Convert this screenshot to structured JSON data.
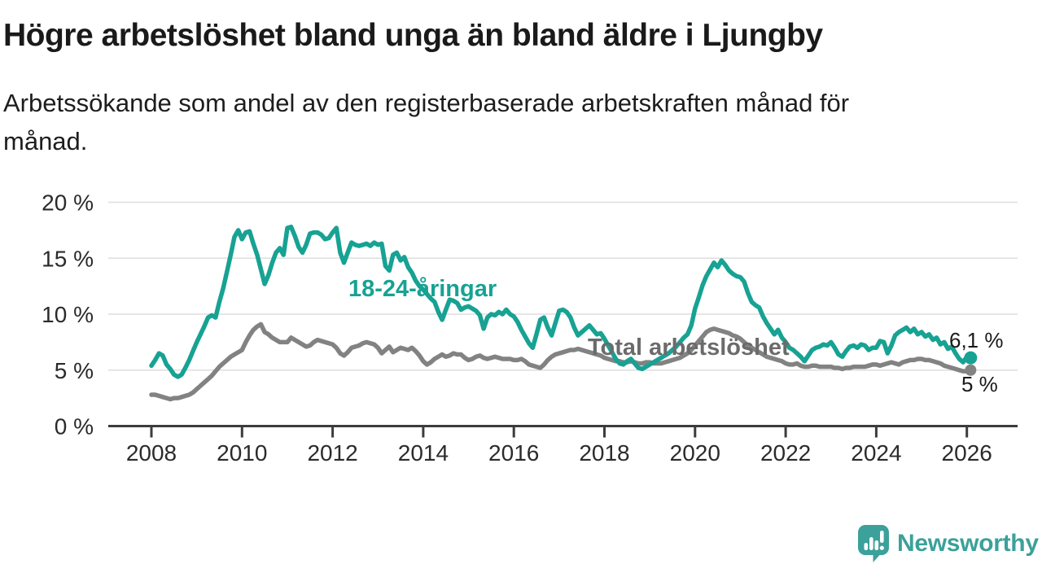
{
  "header": {
    "title": "Högre arbetslöshet bland unga än bland äldre i Ljungby",
    "subtitle": "Arbetssökande som andel av den registerbaserade arbetskraften månad för månad."
  },
  "chart_data": {
    "type": "line",
    "title": "Högre arbetslöshet bland unga än bland äldre i Ljungby",
    "x_unit": "month",
    "x_start": "2008-01",
    "x_end": "2026-02",
    "ylim": [
      0,
      20
    ],
    "grid": true,
    "legend_position": "inline-labels",
    "x_tick_labels": [
      "2008",
      "2010",
      "2012",
      "2014",
      "2016",
      "2018",
      "2020",
      "2022",
      "2024",
      "2026"
    ],
    "y_tick_labels": [
      "0 %",
      "5 %",
      "10 %",
      "15 %",
      "20 %"
    ],
    "series": [
      {
        "name": "18-24-åringar",
        "color": "#17a293",
        "end_label": "6,1 %",
        "end_value": 6.1,
        "values": [
          5.4,
          5.9,
          6.5,
          6.3,
          5.5,
          5.1,
          4.6,
          4.4,
          4.6,
          5.2,
          5.9,
          6.7,
          7.5,
          8.2,
          8.9,
          9.7,
          9.9,
          9.7,
          11.1,
          12.3,
          13.8,
          15.3,
          16.9,
          17.5,
          16.7,
          17.3,
          17.4,
          16.3,
          15.3,
          14.0,
          12.7,
          13.5,
          14.6,
          15.5,
          15.9,
          15.3,
          17.7,
          17.8,
          17.0,
          16.0,
          15.5,
          16.2,
          17.2,
          17.3,
          17.3,
          17.1,
          16.7,
          16.8,
          17.3,
          17.7,
          15.5,
          14.6,
          15.5,
          16.4,
          16.2,
          16.1,
          16.2,
          16.3,
          16.1,
          16.4,
          16.2,
          16.3,
          14.3,
          13.9,
          15.3,
          15.5,
          14.8,
          15.1,
          14.2,
          13.7,
          13.0,
          12.5,
          12.2,
          11.8,
          11.4,
          11.1,
          10.2,
          9.5,
          10.4,
          11.3,
          11.2,
          11.0,
          10.4,
          10.6,
          10.7,
          10.5,
          10.3,
          9.9,
          8.7,
          9.7,
          10.0,
          9.9,
          10.2,
          10.0,
          10.4,
          10.0,
          9.8,
          9.3,
          8.6,
          8.0,
          7.4,
          7.0,
          8.2,
          9.5,
          9.7,
          8.8,
          8.1,
          9.2,
          10.3,
          10.4,
          10.2,
          9.7,
          8.8,
          8.1,
          8.4,
          8.7,
          9.0,
          8.6,
          8.2,
          8.3,
          7.8,
          7.2,
          6.6,
          6.0,
          5.6,
          5.5,
          5.8,
          6.0,
          5.6,
          5.2,
          5.1,
          5.3,
          5.5,
          5.7,
          5.9,
          6.1,
          6.3,
          6.5,
          6.8,
          7.1,
          7.5,
          7.9,
          8.2,
          9.0,
          10.5,
          11.5,
          12.6,
          13.4,
          14.0,
          14.6,
          14.2,
          14.8,
          14.4,
          13.9,
          13.6,
          13.4,
          13.3,
          12.9,
          11.9,
          11.1,
          10.8,
          10.6,
          9.8,
          9.2,
          8.7,
          8.2,
          8.6,
          7.9,
          7.5,
          7.0,
          6.8,
          6.5,
          6.2,
          5.8,
          6.3,
          6.8,
          7.0,
          7.1,
          7.3,
          7.2,
          7.5,
          7.0,
          6.4,
          6.2,
          6.7,
          7.1,
          7.2,
          7.0,
          7.3,
          7.2,
          6.8,
          7.0,
          7.0,
          7.6,
          7.5,
          6.5,
          7.2,
          8.1,
          8.4,
          8.6,
          8.8,
          8.4,
          8.7,
          8.2,
          8.4,
          8.0,
          8.2,
          7.7,
          7.9,
          7.3,
          7.5,
          6.9,
          7.1,
          6.5,
          6.0,
          5.7,
          6.2,
          6.1
        ]
      },
      {
        "name": "Total arbetslöshet",
        "color": "#828282",
        "end_label": "5 %",
        "end_value": 5.0,
        "values": [
          2.8,
          2.8,
          2.7,
          2.6,
          2.5,
          2.4,
          2.5,
          2.5,
          2.6,
          2.7,
          2.8,
          3.0,
          3.3,
          3.6,
          3.9,
          4.2,
          4.5,
          4.9,
          5.3,
          5.6,
          5.9,
          6.2,
          6.4,
          6.6,
          6.8,
          7.5,
          8.1,
          8.6,
          8.9,
          9.1,
          8.4,
          8.2,
          7.9,
          7.7,
          7.5,
          7.5,
          7.5,
          7.9,
          7.7,
          7.5,
          7.3,
          7.1,
          7.2,
          7.5,
          7.7,
          7.6,
          7.5,
          7.4,
          7.3,
          7.0,
          6.5,
          6.3,
          6.6,
          7.0,
          7.1,
          7.2,
          7.4,
          7.5,
          7.4,
          7.3,
          7.0,
          6.5,
          6.8,
          7.1,
          6.6,
          6.8,
          7.0,
          6.9,
          6.8,
          7.0,
          6.7,
          6.3,
          5.8,
          5.5,
          5.7,
          6.0,
          6.2,
          6.4,
          6.2,
          6.3,
          6.5,
          6.4,
          6.4,
          6.1,
          5.9,
          6.0,
          6.2,
          6.3,
          6.1,
          6.0,
          6.1,
          6.2,
          6.1,
          6.0,
          6.0,
          6.0,
          5.9,
          5.9,
          6.0,
          5.8,
          5.5,
          5.4,
          5.3,
          5.2,
          5.5,
          5.9,
          6.2,
          6.4,
          6.5,
          6.6,
          6.7,
          6.8,
          6.8,
          6.9,
          6.8,
          6.7,
          6.6,
          6.5,
          6.4,
          6.3,
          6.1,
          6.0,
          5.9,
          5.8,
          5.8,
          5.7,
          5.7,
          5.8,
          5.7,
          5.6,
          5.6,
          5.7,
          5.7,
          5.6,
          5.6,
          5.6,
          5.7,
          5.8,
          5.9,
          6.0,
          6.1,
          6.3,
          6.5,
          6.8,
          7.2,
          7.6,
          8.0,
          8.4,
          8.6,
          8.7,
          8.6,
          8.5,
          8.4,
          8.3,
          8.1,
          8.0,
          7.8,
          7.5,
          7.2,
          7.0,
          6.8,
          6.6,
          6.4,
          6.2,
          6.1,
          6.0,
          5.9,
          5.8,
          5.6,
          5.5,
          5.5,
          5.6,
          5.4,
          5.3,
          5.3,
          5.4,
          5.4,
          5.3,
          5.3,
          5.3,
          5.3,
          5.2,
          5.2,
          5.1,
          5.2,
          5.2,
          5.3,
          5.3,
          5.3,
          5.3,
          5.4,
          5.5,
          5.5,
          5.4,
          5.5,
          5.6,
          5.7,
          5.6,
          5.5,
          5.7,
          5.8,
          5.9,
          5.9,
          6.0,
          6.0,
          5.9,
          5.9,
          5.8,
          5.7,
          5.6,
          5.4,
          5.3,
          5.2,
          5.1,
          5.0,
          4.9,
          4.9,
          5.0
        ]
      }
    ]
  },
  "footer": {
    "brand": "Newsworthy",
    "brand_color": "#3ba19a"
  }
}
